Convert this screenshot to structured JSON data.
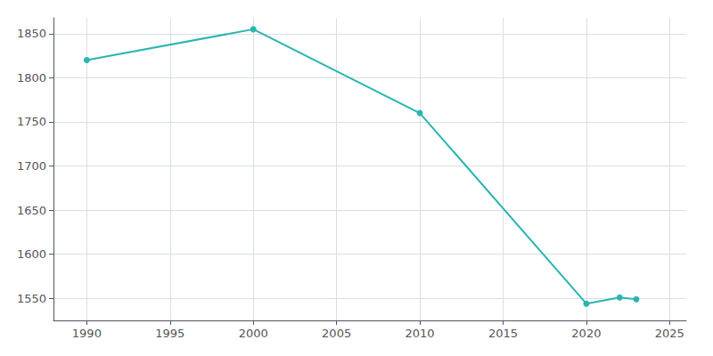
{
  "chart_data": {
    "type": "line",
    "x": [
      1990,
      2000,
      2010,
      2020,
      2022,
      2023
    ],
    "values": [
      1820,
      1855,
      1760,
      1544,
      1551,
      1549
    ],
    "color": "#2ab5b0",
    "marker": "circle",
    "xlim": [
      1988,
      2026
    ],
    "ylim": [
      1525,
      1868
    ],
    "xticks": [
      1990,
      1995,
      2000,
      2005,
      2010,
      2015,
      2020,
      2025
    ],
    "yticks": [
      1550,
      1600,
      1650,
      1700,
      1750,
      1800,
      1850
    ],
    "grid": true
  }
}
